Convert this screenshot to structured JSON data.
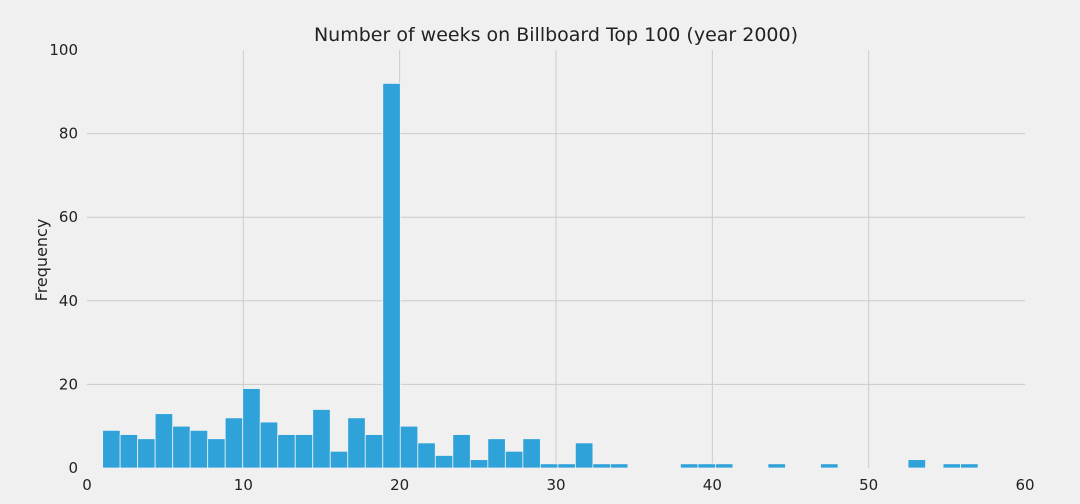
{
  "chart_data": {
    "type": "bar",
    "title": "Number of weeks on Billboard Top 100 (year 2000)",
    "xlabel": "",
    "ylabel": "Frequency",
    "xlim": [
      0,
      60
    ],
    "ylim": [
      0,
      100
    ],
    "xticks": [
      "0",
      "10",
      "20",
      "30",
      "40",
      "50",
      "60"
    ],
    "yticks": [
      "0",
      "20",
      "40",
      "60",
      "80",
      "100"
    ],
    "grid": true,
    "legend": "none",
    "bar_color": "#30a2da",
    "background": "#f0f0f0",
    "grid_color": "#cbcbcb",
    "bins": [
      {
        "x0": 1.0,
        "x1": 2.12,
        "value": 9
      },
      {
        "x0": 2.12,
        "x1": 3.24,
        "value": 8
      },
      {
        "x0": 3.24,
        "x1": 4.36,
        "value": 7
      },
      {
        "x0": 4.36,
        "x1": 5.48,
        "value": 13
      },
      {
        "x0": 5.48,
        "x1": 6.6,
        "value": 10
      },
      {
        "x0": 6.6,
        "x1": 7.72,
        "value": 9
      },
      {
        "x0": 7.72,
        "x1": 8.84,
        "value": 7
      },
      {
        "x0": 8.84,
        "x1": 9.96,
        "value": 12
      },
      {
        "x0": 9.96,
        "x1": 11.08,
        "value": 19
      },
      {
        "x0": 11.08,
        "x1": 12.2,
        "value": 11
      },
      {
        "x0": 12.2,
        "x1": 13.32,
        "value": 8
      },
      {
        "x0": 13.32,
        "x1": 14.44,
        "value": 8
      },
      {
        "x0": 14.44,
        "x1": 15.56,
        "value": 14
      },
      {
        "x0": 15.56,
        "x1": 16.68,
        "value": 4
      },
      {
        "x0": 16.68,
        "x1": 17.8,
        "value": 12
      },
      {
        "x0": 17.8,
        "x1": 18.92,
        "value": 8
      },
      {
        "x0": 18.92,
        "x1": 20.04,
        "value": 92
      },
      {
        "x0": 20.04,
        "x1": 21.16,
        "value": 10
      },
      {
        "x0": 21.16,
        "x1": 22.28,
        "value": 6
      },
      {
        "x0": 22.28,
        "x1": 23.4,
        "value": 3
      },
      {
        "x0": 23.4,
        "x1": 24.52,
        "value": 8
      },
      {
        "x0": 24.52,
        "x1": 25.64,
        "value": 2
      },
      {
        "x0": 25.64,
        "x1": 26.76,
        "value": 7
      },
      {
        "x0": 26.76,
        "x1": 27.88,
        "value": 4
      },
      {
        "x0": 27.88,
        "x1": 29.0,
        "value": 7
      },
      {
        "x0": 29.0,
        "x1": 30.12,
        "value": 1
      },
      {
        "x0": 30.12,
        "x1": 31.24,
        "value": 1
      },
      {
        "x0": 31.24,
        "x1": 32.36,
        "value": 6
      },
      {
        "x0": 32.36,
        "x1": 33.48,
        "value": 1
      },
      {
        "x0": 33.48,
        "x1": 34.6,
        "value": 1
      },
      {
        "x0": 37.96,
        "x1": 39.08,
        "value": 1
      },
      {
        "x0": 39.08,
        "x1": 40.2,
        "value": 1
      },
      {
        "x0": 40.2,
        "x1": 41.32,
        "value": 1
      },
      {
        "x0": 43.56,
        "x1": 44.68,
        "value": 1
      },
      {
        "x0": 46.92,
        "x1": 48.04,
        "value": 1
      },
      {
        "x0": 52.52,
        "x1": 53.64,
        "value": 2
      },
      {
        "x0": 54.76,
        "x1": 55.88,
        "value": 1
      },
      {
        "x0": 55.88,
        "x1": 57.0,
        "value": 1
      }
    ]
  }
}
